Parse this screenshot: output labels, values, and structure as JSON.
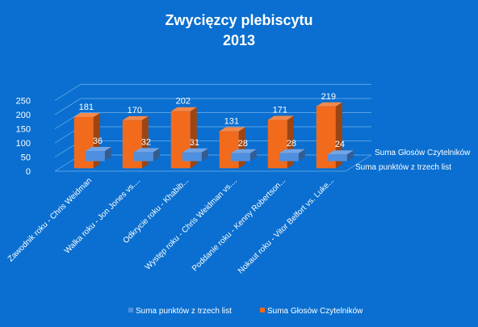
{
  "chart_data": {
    "type": "bar",
    "title": "Zwycięzcy plebiscytu",
    "subtitle": "2013",
    "categories": [
      "Zawodnik roku - Chris Weidman",
      "Walka roku - Jon Jones vs....",
      "Odkrycie roku - Khabib...",
      "Występ roku - Chris Weidman vs....",
      "Poddanie roku - Kenny Robertson...",
      "Nokaut roku - Vitor Belfort vs. Luke..."
    ],
    "series": [
      {
        "name": "Suma punktów z trzech list",
        "values": [
          36,
          32,
          31,
          28,
          28,
          24
        ],
        "color": "#4f8fe0"
      },
      {
        "name": "Suma Głosów Czytelników",
        "values": [
          181,
          170,
          202,
          131,
          171,
          219
        ],
        "color": "#f26a1b"
      }
    ],
    "yticks": [
      "0",
      "50",
      "100",
      "150",
      "200",
      "250"
    ],
    "ylim": [
      0,
      250
    ],
    "legend": "bottom",
    "grid": true
  }
}
